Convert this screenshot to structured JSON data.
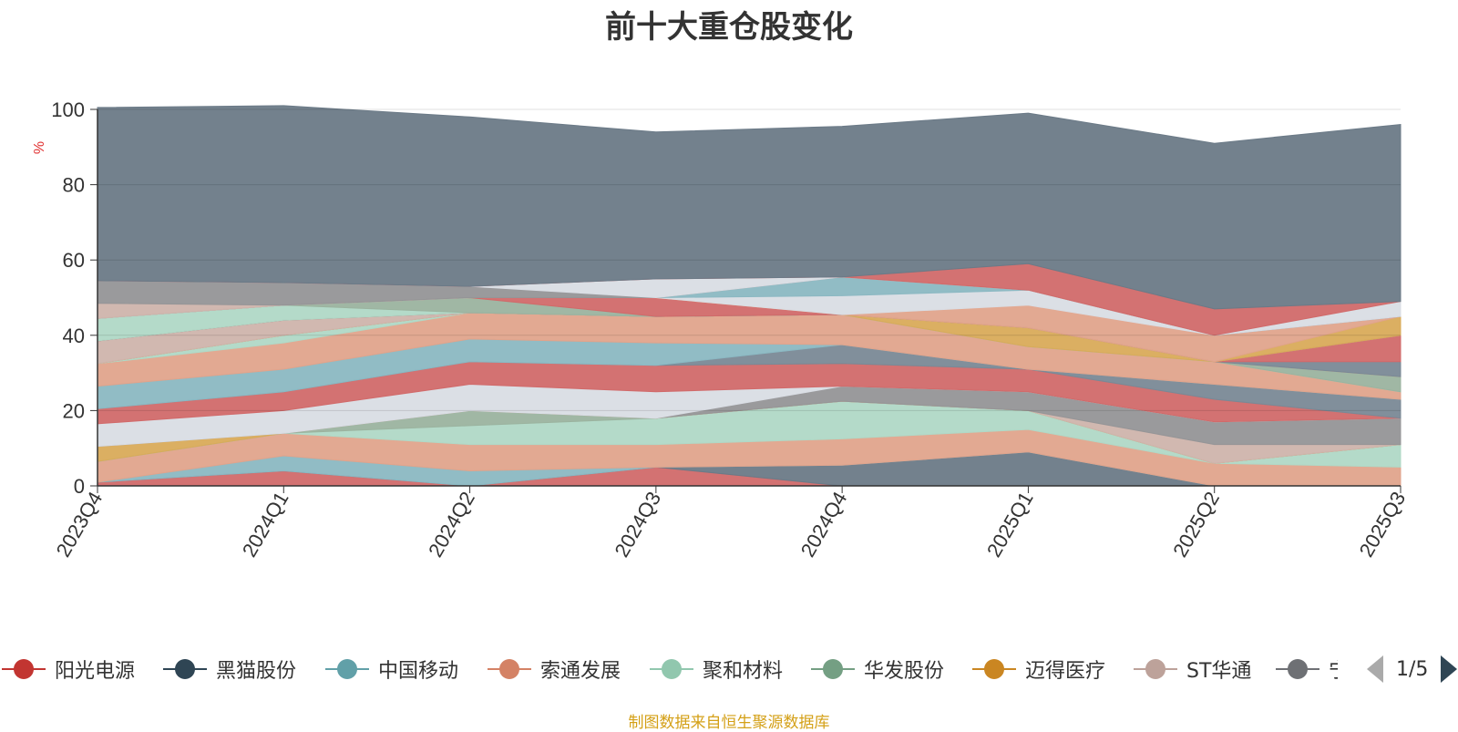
{
  "chart_data": {
    "type": "area",
    "title": "前十大重仓股变化",
    "ylabel": "%",
    "ylim": [
      0,
      100
    ],
    "yticks": [
      0,
      20,
      40,
      60,
      80,
      100
    ],
    "categories": [
      "2023Q4",
      "2024Q1",
      "2024Q2",
      "2024Q3",
      "2024Q4",
      "2025Q1",
      "2025Q2",
      "2025Q3"
    ],
    "stacked": true,
    "grid": true,
    "series": [
      {
        "name": "阳光电源",
        "color": "#d16a6a",
        "values": [
          1,
          4,
          0,
          5,
          0,
          0,
          0,
          0
        ]
      },
      {
        "name": "黑猫股份",
        "color": "#6b7a87",
        "values": [
          0,
          0,
          0,
          0,
          5.5,
          9,
          0,
          0
        ]
      },
      {
        "name": "中国移动",
        "color": "#8bb8c2",
        "values": [
          0,
          4,
          4,
          0,
          0,
          0,
          0,
          0
        ]
      },
      {
        "name": "索通发展",
        "color": "#e0a48c",
        "values": [
          5.5,
          6,
          7,
          6,
          7,
          6,
          6,
          5
        ]
      },
      {
        "name": "聚和材料",
        "color": "#b0d8c6",
        "values": [
          0,
          0,
          5,
          7,
          10,
          5,
          0,
          6
        ]
      },
      {
        "name": "华发股份",
        "color": "#9bb39f",
        "values": [
          0,
          0,
          4,
          0,
          0,
          0,
          0,
          0
        ]
      },
      {
        "name": "迈得医疗",
        "color": "#d9ab5a",
        "values": [
          4,
          0,
          0,
          0,
          0,
          0,
          0,
          0
        ]
      },
      {
        "name": "ST华通",
        "color": "#cfb4ac",
        "values": [
          0,
          0,
          0,
          0,
          0,
          0,
          5,
          0
        ]
      },
      {
        "name": "宁",
        "color": "#959597",
        "values": [
          0,
          0,
          0,
          0,
          4,
          5,
          6,
          7
        ]
      },
      {
        "name": "",
        "color": "#d9dde4",
        "values": [
          6,
          6,
          7,
          7,
          0,
          0,
          0,
          0
        ]
      },
      {
        "name": "",
        "color": "#d16a6a",
        "values": [
          4,
          5,
          6,
          7,
          6,
          6,
          6,
          0
        ]
      },
      {
        "name": "",
        "color": "#7a8996",
        "values": [
          0,
          0,
          0,
          0,
          5,
          0,
          4,
          5
        ]
      },
      {
        "name": "",
        "color": "#8bb8c2",
        "values": [
          6,
          6,
          6,
          6,
          0,
          0,
          0,
          0
        ]
      },
      {
        "name": "",
        "color": "#e0a48c",
        "values": [
          6,
          7,
          7,
          7,
          8,
          6,
          6,
          2
        ]
      },
      {
        "name": "",
        "color": "#b0d8c6",
        "values": [
          0,
          2,
          0,
          0,
          0,
          0,
          0,
          0
        ]
      },
      {
        "name": "",
        "color": "#9bb39f",
        "values": [
          0,
          0,
          0,
          0,
          0,
          0,
          0,
          4
        ]
      },
      {
        "name": "",
        "color": "#d9ab5a",
        "values": [
          0,
          0,
          0,
          0,
          0,
          5,
          0,
          0
        ]
      },
      {
        "name": "",
        "color": "#cfb4ac",
        "values": [
          6,
          4,
          0,
          0,
          0,
          0,
          0,
          0
        ]
      },
      {
        "name": "",
        "color": "#7a8996",
        "values": [
          0,
          0,
          0,
          0,
          0,
          0,
          0,
          4
        ]
      },
      {
        "name": "",
        "color": "#d16a6a",
        "values": [
          0,
          0,
          0,
          0,
          0,
          0,
          0,
          7
        ]
      },
      {
        "name": "",
        "color": "#b0d8c6",
        "values": [
          6,
          4,
          0,
          0,
          0,
          0,
          0,
          0
        ]
      },
      {
        "name": "",
        "color": "#9bb39f",
        "values": [
          0,
          0,
          4,
          0,
          0,
          0,
          0,
          0
        ]
      },
      {
        "name": "",
        "color": "#d16a6a",
        "values": [
          0,
          0,
          0,
          5,
          0,
          0,
          0,
          0
        ]
      },
      {
        "name": "",
        "color": "#d9ab5a",
        "values": [
          0,
          0,
          0,
          0,
          0,
          0,
          0,
          5
        ]
      },
      {
        "name": "",
        "color": "#e0a48c",
        "values": [
          0,
          0,
          0,
          0,
          0,
          6,
          7,
          0
        ]
      },
      {
        "name": "",
        "color": "#d9dde4",
        "values": [
          0,
          0,
          0,
          0,
          5,
          4,
          0,
          0
        ]
      },
      {
        "name": "",
        "color": "#8bb8c2",
        "values": [
          0,
          0,
          0,
          0,
          5,
          0,
          0,
          0
        ]
      },
      {
        "name": "",
        "color": "#cfb4ac",
        "values": [
          4,
          0,
          0,
          0,
          0,
          0,
          0,
          0
        ]
      },
      {
        "name": "",
        "color": "#959597",
        "values": [
          6,
          6,
          3,
          0,
          0,
          0,
          0,
          0
        ]
      },
      {
        "name": "",
        "color": "#d9dde4",
        "values": [
          0,
          0,
          0,
          5,
          0,
          0,
          0,
          4
        ]
      },
      {
        "name": "",
        "color": "#d16a6a",
        "values": [
          0,
          0,
          0,
          0,
          0,
          7,
          7,
          0
        ]
      },
      {
        "name": "",
        "color": "#6b7a87",
        "values": [
          46,
          47,
          45,
          39,
          40,
          40,
          44,
          47
        ]
      }
    ]
  },
  "legend": {
    "items": [
      {
        "label": "阳光电源",
        "color": "#c23531"
      },
      {
        "label": "黑猫股份",
        "color": "#2f4554"
      },
      {
        "label": "中国移动",
        "color": "#61a0a8"
      },
      {
        "label": "索通发展",
        "color": "#d48265"
      },
      {
        "label": "聚和材料",
        "color": "#91c7ae"
      },
      {
        "label": "华发股份",
        "color": "#749f83"
      },
      {
        "label": "迈得医疗",
        "color": "#ca8622"
      },
      {
        "label": "ST华通",
        "color": "#bda29a"
      },
      {
        "label": "宁",
        "color": "#6e7074"
      }
    ],
    "page_text": "1/5"
  },
  "footer": {
    "source": "制图数据来自恒生聚源数据库"
  }
}
